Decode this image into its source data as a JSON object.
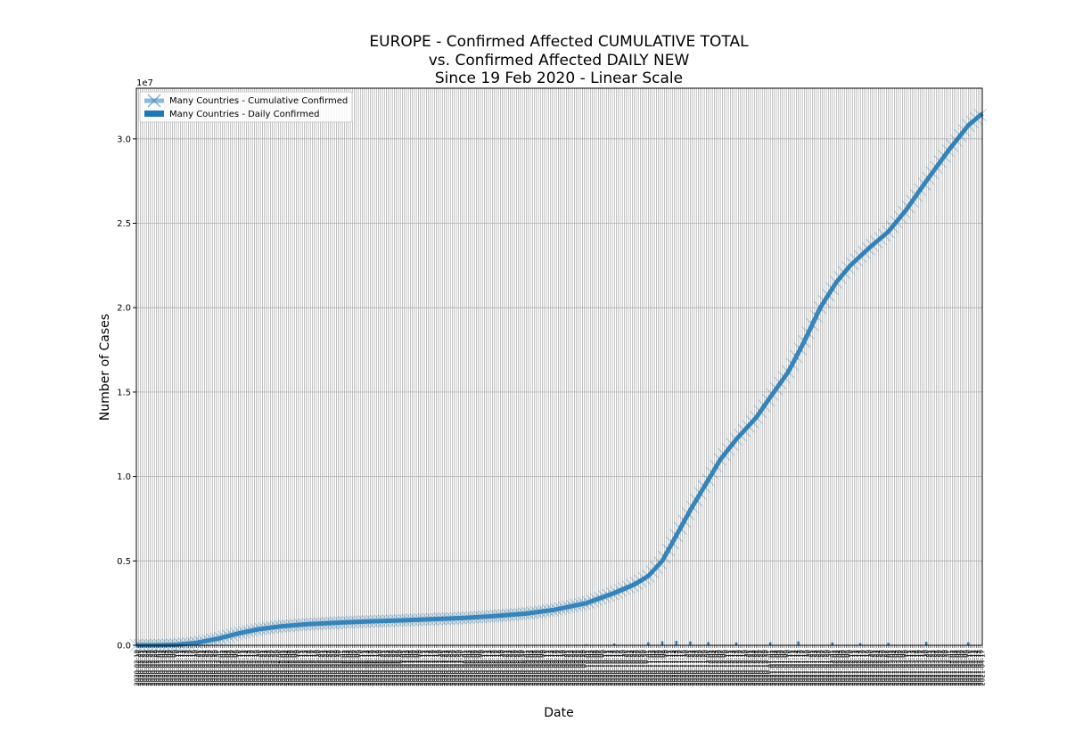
{
  "chart_data": {
    "type": "line",
    "title_lines": [
      "EUROPE - Confirmed Affected CUMULATIVE TOTAL",
      "vs. Confirmed Affected DAILY NEW",
      "Since 19 Feb 2020 - Linear Scale"
    ],
    "xlabel": "Date",
    "ylabel": "Number of Cases",
    "y_offset_text": "1e7",
    "ylim": [
      0,
      33000000
    ],
    "y_ticks": [
      0,
      5000000,
      10000000,
      15000000,
      20000000,
      25000000,
      30000000
    ],
    "y_tick_labels": [
      "0.0",
      "0.5",
      "1.0",
      "1.5",
      "2.0",
      "2.5",
      "3.0"
    ],
    "grid": true,
    "legend_position": "top-left",
    "x_start": "2020-02-19",
    "x_end": "2021-02-26",
    "series": [
      {
        "name": "Many Countries - Cumulative Confirmed",
        "kind": "line",
        "marker": "x",
        "color": "#1f77b4",
        "points": [
          [
            "2020-02-19",
            0
          ],
          [
            "2020-03-01",
            5000
          ],
          [
            "2020-03-10",
            30000
          ],
          [
            "2020-03-20",
            150000
          ],
          [
            "2020-03-31",
            400000
          ],
          [
            "2020-04-10",
            700000
          ],
          [
            "2020-04-20",
            950000
          ],
          [
            "2020-05-01",
            1120000
          ],
          [
            "2020-05-15",
            1250000
          ],
          [
            "2020-06-01",
            1350000
          ],
          [
            "2020-06-15",
            1420000
          ],
          [
            "2020-07-01",
            1480000
          ],
          [
            "2020-07-15",
            1540000
          ],
          [
            "2020-08-01",
            1620000
          ],
          [
            "2020-08-15",
            1720000
          ],
          [
            "2020-09-01",
            1880000
          ],
          [
            "2020-09-15",
            2100000
          ],
          [
            "2020-10-01",
            2500000
          ],
          [
            "2020-10-15",
            3100000
          ],
          [
            "2020-10-25",
            3600000
          ],
          [
            "2020-11-01",
            4100000
          ],
          [
            "2020-11-08",
            5000000
          ],
          [
            "2020-11-15",
            6500000
          ],
          [
            "2020-11-22",
            8000000
          ],
          [
            "2020-11-30",
            9600000
          ],
          [
            "2020-12-07",
            11000000
          ],
          [
            "2020-12-15",
            12200000
          ],
          [
            "2020-12-25",
            13500000
          ],
          [
            "2021-01-01",
            14700000
          ],
          [
            "2021-01-10",
            16200000
          ],
          [
            "2021-01-18",
            18000000
          ],
          [
            "2021-01-26",
            20000000
          ],
          [
            "2021-02-03",
            21500000
          ],
          [
            "2021-02-10",
            22500000
          ],
          [
            "2021-02-20",
            23600000
          ],
          [
            "2021-03-01",
            24500000
          ],
          [
            "2021-03-10",
            25800000
          ],
          [
            "2021-03-20",
            27500000
          ],
          [
            "2021-03-31",
            29300000
          ],
          [
            "2021-04-10",
            30800000
          ],
          [
            "2021-04-17",
            31500000
          ]
        ]
      },
      {
        "name": "Many Countries - Daily Confirmed",
        "kind": "bar",
        "color": "#1f77b4",
        "points": [
          [
            "2020-03-20",
            15000
          ],
          [
            "2020-03-31",
            30000
          ],
          [
            "2020-04-10",
            30000
          ],
          [
            "2020-05-01",
            15000
          ],
          [
            "2020-06-01",
            10000
          ],
          [
            "2020-07-01",
            10000
          ],
          [
            "2020-08-01",
            15000
          ],
          [
            "2020-09-01",
            25000
          ],
          [
            "2020-10-01",
            60000
          ],
          [
            "2020-10-15",
            100000
          ],
          [
            "2020-11-01",
            180000
          ],
          [
            "2020-11-08",
            240000
          ],
          [
            "2020-11-15",
            260000
          ],
          [
            "2020-11-22",
            230000
          ],
          [
            "2020-12-01",
            190000
          ],
          [
            "2020-12-15",
            170000
          ],
          [
            "2021-01-01",
            180000
          ],
          [
            "2021-01-15",
            230000
          ],
          [
            "2021-02-01",
            170000
          ],
          [
            "2021-02-15",
            130000
          ],
          [
            "2021-03-01",
            150000
          ],
          [
            "2021-03-20",
            200000
          ],
          [
            "2021-04-10",
            180000
          ]
        ]
      }
    ]
  }
}
